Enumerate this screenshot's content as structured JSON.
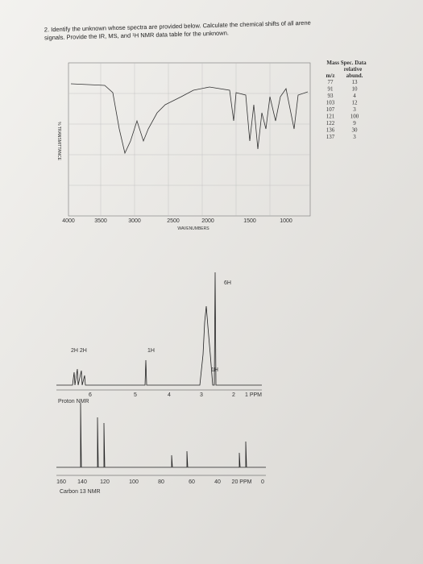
{
  "question": {
    "line1": "2. Identify the unknown whose spectra are provided below. Calculate the chemical shifts of all arene",
    "line2": "signals. Provide the IR, MS, and ¹H NMR data table for the unknown."
  },
  "ir": {
    "x_ticks": [
      "4000",
      "3500",
      "3000",
      "2500",
      "2000",
      "1500",
      "1000"
    ],
    "x_label": "WAVENUMBERS",
    "y_label": "% TRANSMITTANCE"
  },
  "mass_spec": {
    "title": "Mass Spec. Data",
    "header_top": "relative",
    "headers": [
      "m/z",
      "abund."
    ],
    "rows": [
      [
        "77",
        "13"
      ],
      [
        "91",
        "10"
      ],
      [
        "93",
        "4"
      ],
      [
        "103",
        "12"
      ],
      [
        "107",
        "3"
      ],
      [
        "121",
        "100"
      ],
      [
        "122",
        "9"
      ],
      [
        "136",
        "30"
      ],
      [
        "137",
        "3"
      ]
    ]
  },
  "proton_nmr": {
    "integrations": [
      "2H 2H",
      "1H",
      "1H",
      "6H"
    ],
    "ticks": [
      "6",
      "5",
      "4",
      "3",
      "2",
      "1 PPM"
    ],
    "label": "Proton NMR"
  },
  "carbon_nmr": {
    "ticks": [
      "160",
      "140",
      "120",
      "100",
      "80",
      "60",
      "40",
      "20 PPM",
      "0"
    ],
    "label": "Carbon 13 NMR"
  }
}
